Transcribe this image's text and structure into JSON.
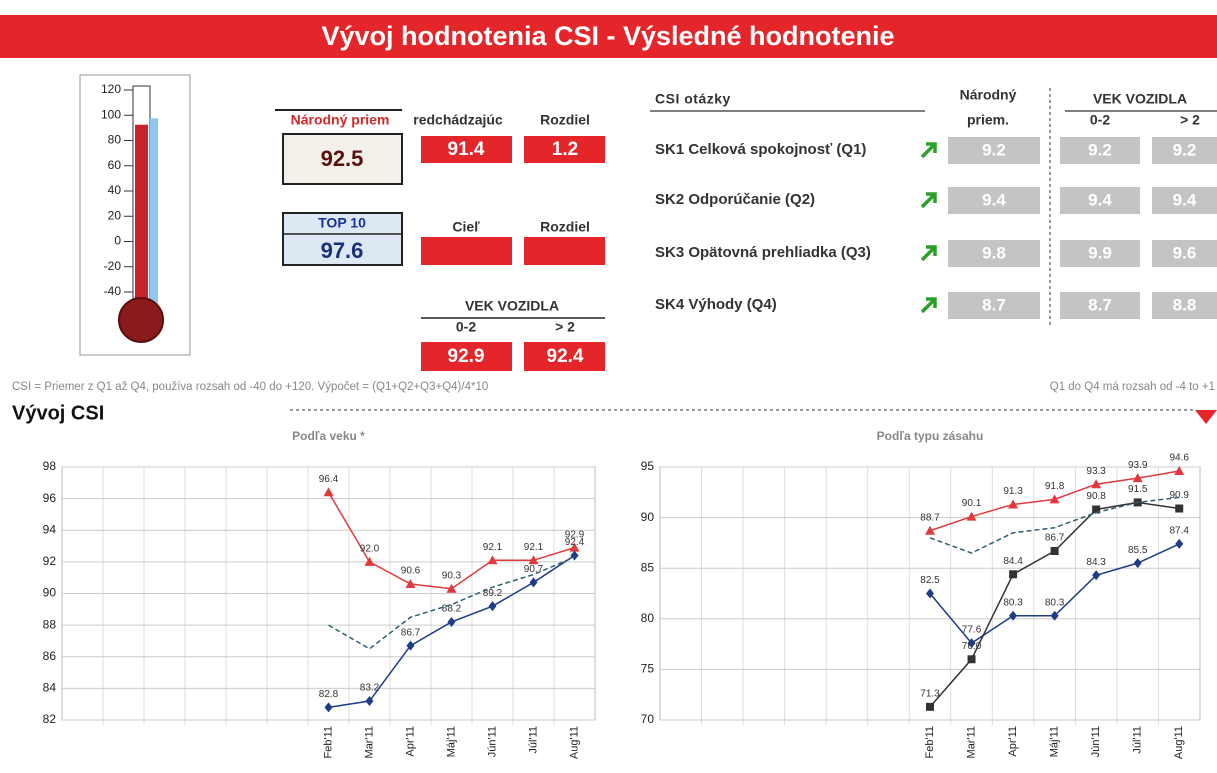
{
  "header": {
    "title": "Vývoj hodnotenia CSI - Výsledné hodnotenie"
  },
  "thermometer": {
    "ylim": [
      -40,
      120
    ],
    "yticks": [
      -40,
      -20,
      0,
      20,
      40,
      60,
      80,
      100,
      120
    ],
    "fill_color": "#c8222a",
    "top_color": "#8ec8ee"
  },
  "kpi": {
    "national": {
      "label": "Národný priem",
      "value": 92.5
    },
    "previous": {
      "label": "redchádzajúc",
      "value": 91.4
    },
    "diff": {
      "label": "Rozdiel",
      "value": 1.2
    },
    "top10": {
      "label": "TOP 10",
      "value": 97.6
    },
    "target": {
      "label": "Cieľ"
    },
    "target_diff": {
      "label": "Rozdiel"
    },
    "age": {
      "label": "VEK VOZIDLA",
      "groups": [
        {
          "label": "0-2",
          "value": 92.9
        },
        {
          "label": "> 2",
          "value": 92.4
        }
      ]
    }
  },
  "questions": {
    "header": "CSI otázky",
    "national_header": [
      "Národný",
      "priem."
    ],
    "age_header": "VEK VOZIDLA",
    "age_groups": [
      "0-2",
      "> 2"
    ],
    "rows": [
      {
        "label": "SK1 Celková spokojnosť (Q1)",
        "values": [
          9.2,
          9.2,
          9.2
        ]
      },
      {
        "label": "SK2 Odporúčanie (Q2)",
        "values": [
          9.4,
          9.4,
          9.4
        ]
      },
      {
        "label": "SK3 Opätovná prehliadka (Q3)",
        "values": [
          9.8,
          9.9,
          9.6
        ]
      },
      {
        "label": "SK4 Výhody (Q4)",
        "values": [
          8.7,
          8.7,
          8.8
        ]
      }
    ]
  },
  "notes": {
    "left": "CSI = Priemer z Q1 až Q4, používa rozsah od -40 do +120. Výpočet = (Q1+Q2+Q3+Q4)/4*10",
    "right": "Q1 do Q4 má rozsah od -4 to +1"
  },
  "section_title": "Vývoj CSI",
  "chart_data": [
    {
      "type": "line",
      "title": "Podľa veku *",
      "categories": [
        null,
        null,
        null,
        null,
        null,
        null,
        "Feb'11",
        "Mar'11",
        "Apr'11",
        "Máj'11",
        "Jún'11",
        "Júl'11",
        "Aug'11"
      ],
      "ylim": [
        82,
        98
      ],
      "yticks": [
        82,
        84,
        86,
        88,
        90,
        92,
        94,
        96,
        98
      ],
      "grid": true,
      "series": [
        {
          "color": "#e0393e",
          "marker": "triangle",
          "values": [
            null,
            null,
            null,
            null,
            null,
            null,
            96.4,
            92.0,
            90.6,
            90.3,
            92.1,
            92.1,
            92.9
          ],
          "value_labels": [
            null,
            null,
            null,
            null,
            null,
            null,
            "96.4",
            "92.0",
            "90.6",
            "90.3",
            "92.1",
            "92.1",
            "92.9"
          ]
        },
        {
          "color": "#1f3c88",
          "marker": "diamond",
          "values": [
            null,
            null,
            null,
            null,
            null,
            null,
            82.8,
            83.2,
            86.7,
            88.2,
            89.2,
            90.7,
            92.4
          ],
          "value_labels": [
            null,
            null,
            null,
            null,
            null,
            null,
            "82.8",
            "83.2",
            "86.7",
            "88.2",
            "89.2",
            "90.7",
            "92.4"
          ]
        },
        {
          "color": "#2f5f6f",
          "dashed": true,
          "values": [
            null,
            null,
            null,
            null,
            null,
            null,
            88.0,
            86.5,
            88.5,
            89.3,
            90.4,
            91.2,
            92.3
          ]
        }
      ]
    },
    {
      "type": "line",
      "title": "Podľa typu zásahu",
      "categories": [
        null,
        null,
        null,
        null,
        null,
        null,
        "Feb'11",
        "Mar'11",
        "Apr'11",
        "Máj'11",
        "Jún'11",
        "Júl'11",
        "Aug'11"
      ],
      "ylim": [
        70,
        95
      ],
      "yticks": [
        70,
        75,
        80,
        85,
        90,
        95
      ],
      "grid": true,
      "series": [
        {
          "color": "#e0393e",
          "marker": "triangle",
          "values": [
            null,
            null,
            null,
            null,
            null,
            null,
            88.7,
            90.1,
            91.3,
            91.8,
            93.3,
            93.9,
            94.6
          ],
          "value_labels": [
            null,
            null,
            null,
            null,
            null,
            null,
            "88.7",
            "90.1",
            "91.3",
            "91.8",
            "93.3",
            "93.9",
            "94.6"
          ]
        },
        {
          "color": "#1f3c88",
          "marker": "diamond",
          "values": [
            null,
            null,
            null,
            null,
            null,
            null,
            82.5,
            77.6,
            80.3,
            80.3,
            84.3,
            85.5,
            87.4
          ],
          "value_labels": [
            null,
            null,
            null,
            null,
            null,
            null,
            "82.5",
            "77.6",
            "80.3",
            "80.3",
            "84.3",
            "85.5",
            "87.4"
          ]
        },
        {
          "color": "#333333",
          "marker": "square",
          "values": [
            null,
            null,
            null,
            null,
            null,
            null,
            71.3,
            76.0,
            84.4,
            86.7,
            90.8,
            91.5,
            90.9
          ],
          "value_labels": [
            null,
            null,
            null,
            null,
            null,
            null,
            "71.3",
            "76.0",
            "84.4",
            "86.7",
            "90.8",
            "91.5",
            "90.9"
          ]
        },
        {
          "color": "#2f5f6f",
          "dashed": true,
          "values": [
            null,
            null,
            null,
            null,
            null,
            null,
            88.0,
            86.5,
            88.5,
            89.0,
            90.5,
            91.5,
            92.0
          ]
        }
      ]
    }
  ]
}
